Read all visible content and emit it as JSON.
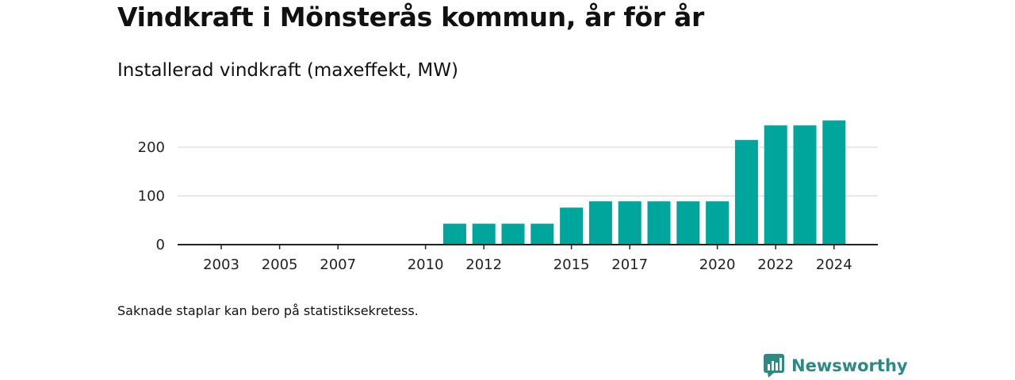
{
  "header": {
    "title": "Vindkraft i Mönsterås kommun, år för år",
    "subtitle": "Installerad vindkraft (maxeffekt, MW)"
  },
  "footer": {
    "note": "Saknade staplar kan bero på statistiksekretess.",
    "brand": "Newsworthy"
  },
  "colors": {
    "bar": "#00a69c",
    "brand": "#2c8a82"
  },
  "chart_data": {
    "type": "bar",
    "title": "Vindkraft i Mönsterås kommun, år för år",
    "subtitle": "Installerad vindkraft (maxeffekt, MW)",
    "xlabel": "",
    "ylabel": "",
    "categories": [
      2003,
      2004,
      2005,
      2006,
      2007,
      2008,
      2009,
      2010,
      2011,
      2012,
      2013,
      2014,
      2015,
      2016,
      2017,
      2018,
      2019,
      2020,
      2021,
      2022,
      2023,
      2024
    ],
    "values": [
      0,
      0,
      0,
      0,
      0,
      0,
      0,
      0,
      43,
      43,
      43,
      43,
      76,
      89,
      89,
      89,
      89,
      89,
      215,
      245,
      245,
      255
    ],
    "x_tick_labels": [
      "2003",
      "2005",
      "2007",
      "2010",
      "2012",
      "2015",
      "2017",
      "2020",
      "2022",
      "2024"
    ],
    "y_ticks": [
      0,
      100,
      200
    ],
    "ylim": [
      0,
      260
    ],
    "grid": true
  }
}
